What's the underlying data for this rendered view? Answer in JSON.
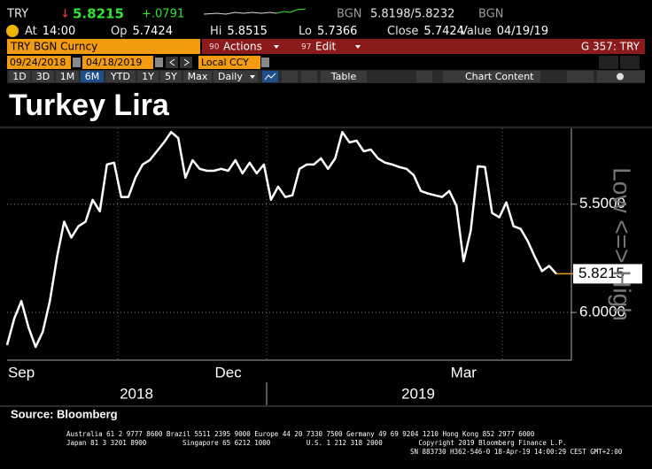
{
  "header": {
    "ticker": "TRY",
    "arrow": "↓",
    "last": 5.8215,
    "change": "+.0791",
    "bid_source": "BGN",
    "bid_ask": "5.8198/5.8232",
    "ask_source": "BGN",
    "fields": [
      {
        "label": "At",
        "value": "14:00"
      },
      {
        "label": "Op",
        "value": 5.7424
      },
      {
        "label": "Hi",
        "value": 5.8515
      },
      {
        "label": "Lo",
        "value": 5.7366
      },
      {
        "label": "Close",
        "value": 5.7424
      },
      {
        "label": "Value",
        "value": "04/19/19"
      }
    ]
  },
  "toolbar": {
    "security": "TRY BGN Curncy",
    "actions": [
      {
        "code": "90",
        "label": "Actions"
      },
      {
        "code": "97",
        "label": "Edit"
      }
    ],
    "page": "G 357: TRY",
    "start_date": "09/24/2018",
    "end_date": "04/18/2019",
    "currency": "Local CCY",
    "ranges": [
      "1D",
      "3D",
      "1M",
      "6M",
      "YTD",
      "1Y",
      "5Y",
      "Max"
    ],
    "active_range": "6M",
    "frequency": "Daily",
    "table": "Table",
    "chart_content": "Chart Content"
  },
  "chart_data": {
    "type": "line",
    "title": "Turkey Lira",
    "y_axis_label": "Low <=> High",
    "categories": [
      null,
      null,
      "Sep",
      null,
      null,
      null,
      null,
      null,
      null,
      null,
      null,
      null,
      null,
      null,
      null,
      null,
      null,
      null,
      null,
      null,
      null,
      null,
      null,
      null,
      null,
      null,
      null,
      null,
      null,
      null,
      null,
      "Dec",
      null,
      null,
      null,
      null,
      null,
      null,
      null,
      null,
      null,
      null,
      null,
      null,
      null,
      null,
      null,
      null,
      null,
      null,
      null,
      null,
      null,
      null,
      null,
      null,
      null,
      null,
      null,
      null,
      null,
      null,
      null,
      null,
      "Mar",
      null,
      null,
      null,
      null,
      null,
      null,
      null,
      null,
      null,
      null,
      null,
      null,
      null
    ],
    "x_group_labels": [
      "2018",
      "2019"
    ],
    "series": [
      {
        "name": "TRY BGN Curncy",
        "color": "#ffffff",
        "values": [
          6.15,
          6.028,
          5.947,
          6.069,
          6.159,
          6.089,
          5.947,
          5.744,
          5.581,
          5.654,
          5.602,
          5.581,
          5.48,
          5.533,
          5.317,
          5.309,
          5.467,
          5.467,
          5.378,
          5.317,
          5.297,
          5.256,
          5.215,
          5.167,
          5.195,
          5.378,
          5.297,
          5.337,
          5.346,
          5.346,
          5.337,
          5.346,
          5.297,
          5.358,
          5.309,
          5.358,
          5.317,
          5.48,
          5.419,
          5.467,
          5.459,
          5.337,
          5.317,
          5.317,
          5.289,
          5.337,
          5.289,
          5.167,
          5.215,
          5.207,
          5.256,
          5.248,
          5.289,
          5.309,
          5.317,
          5.329,
          5.337,
          5.366,
          5.439,
          5.451,
          5.459,
          5.467,
          5.439,
          5.508,
          5.764,
          5.622,
          5.325,
          5.329,
          5.541,
          5.561,
          5.492,
          5.602,
          5.614,
          5.671,
          5.744,
          5.809,
          5.785,
          5.8215
        ]
      }
    ],
    "ylim": [
      6.22,
      5.15
    ],
    "yticks": [
      {
        "value": 5.5,
        "label": "5.5000"
      },
      {
        "value": 6.0,
        "label": "6.0000"
      }
    ],
    "grid": true,
    "last_marker_color": "#f39c12"
  },
  "source": "Source: Bloomberg",
  "footer": [
    "Australia 61 2 9777 8600 Brazil 5511 2395 9000 Europe 44 20 7330 7500 Germany 49 69 9204 1210 Hong Kong 852 2977 6000",
    "Japan 81 3 3201 8900         Singapore 65 6212 1000         U.S. 1 212 318 2000         Copyright 2019 Bloomberg Finance L.P.",
    "SN 883730 H362-546-0 18-Apr-19 14:00:29 CEST GMT+2:00"
  ]
}
